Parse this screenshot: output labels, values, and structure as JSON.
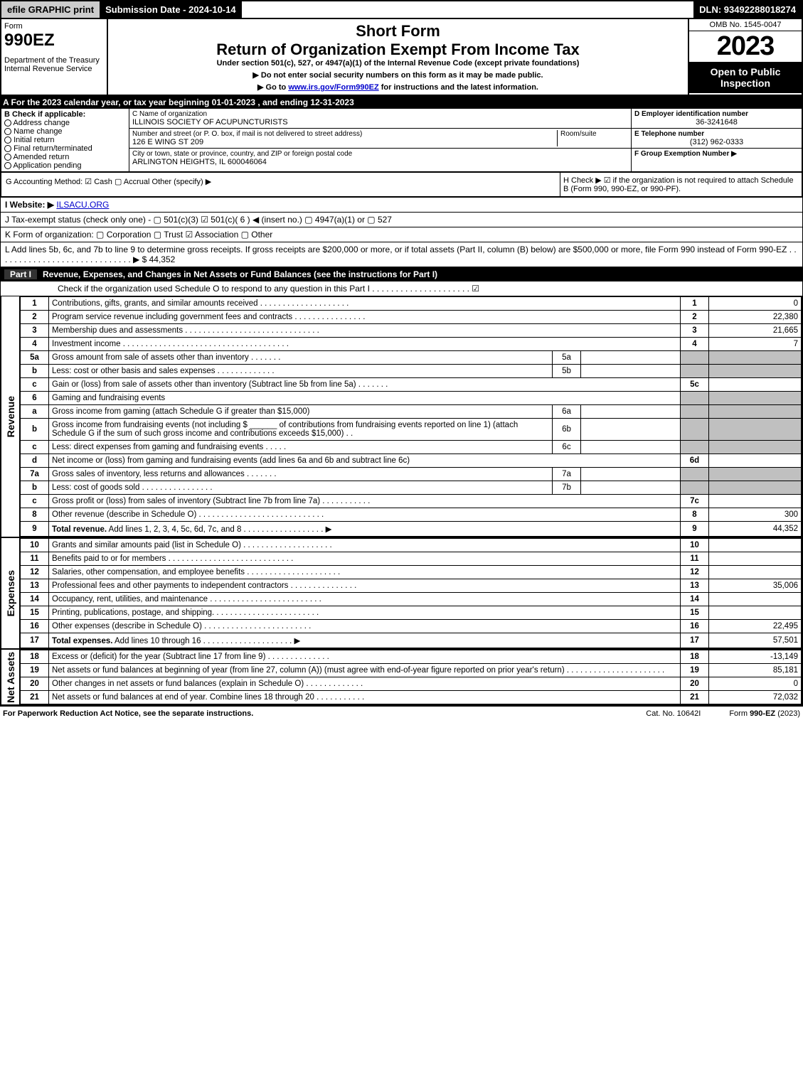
{
  "top": {
    "efile": "efile GRAPHIC print",
    "submission": "Submission Date - 2024-10-14",
    "dln": "DLN: 93492288018274"
  },
  "header": {
    "form": "Form",
    "formNo": "990EZ",
    "dept": "Department of the Treasury\nInternal Revenue Service",
    "shortForm": "Short Form",
    "title": "Return of Organization Exempt From Income Tax",
    "sub": "Under section 501(c), 527, or 4947(a)(1) of the Internal Revenue Code (except private foundations)",
    "instr1": "▶ Do not enter social security numbers on this form as it may be made public.",
    "instr2": "▶ Go to www.irs.gov/Form990EZ for instructions and the latest information.",
    "omb": "OMB No. 1545-0047",
    "year": "2023",
    "open": "Open to Public Inspection"
  },
  "A": "A  For the 2023 calendar year, or tax year beginning 01-01-2023 , and ending 12-31-2023",
  "B": {
    "label": "B  Check if applicable:",
    "opts": [
      "Address change",
      "Name change",
      "Initial return",
      "Final return/terminated",
      "Amended return",
      "Application pending"
    ]
  },
  "C": {
    "l1": "C Name of organization",
    "name": "ILLINOIS SOCIETY OF ACUPUNCTURISTS",
    "l2": "Number and street (or P. O. box, if mail is not delivered to street address)",
    "addr": "126 E WING ST 209",
    "room": "Room/suite",
    "l3": "City or town, state or province, country, and ZIP or foreign postal code",
    "city": "ARLINGTON HEIGHTS, IL  600046064"
  },
  "D": {
    "label": "D Employer identification number",
    "val": "36-3241648"
  },
  "E": {
    "label": "E Telephone number",
    "val": "(312) 962-0333"
  },
  "F": {
    "label": "F Group Exemption Number  ▶"
  },
  "G": "G Accounting Method:   ☑ Cash   ▢ Accrual   Other (specify) ▶",
  "H": "H  Check ▶ ☑ if the organization is not required to attach Schedule B (Form 990, 990-EZ, or 990-PF).",
  "I": {
    "label": "I Website: ▶",
    "val": "ILSACU.ORG"
  },
  "J": "J Tax-exempt status (check only one) -  ▢ 501(c)(3)  ☑ 501(c)( 6 ) ◀ (insert no.)  ▢ 4947(a)(1) or  ▢ 527",
  "K": "K Form of organization:   ▢ Corporation   ▢ Trust   ☑ Association   ▢ Other",
  "L": {
    "text": "L Add lines 5b, 6c, and 7b to line 9 to determine gross receipts. If gross receipts are $200,000 or more, or if total assets (Part II, column (B) below) are $500,000 or more, file Form 990 instead of Form 990-EZ  .  .  .  .  .  .  .  .  .  .  .  .  .  .  .  .  .  .  .  .  .  .  .  .  .  .  .  .  . ▶ $",
    "val": "44,352"
  },
  "part1": {
    "label": "Part I",
    "title": "Revenue, Expenses, and Changes in Net Assets or Fund Balances (see the instructions for Part I)",
    "sub": "Check if the organization used Schedule O to respond to any question in this Part I .  .  .  .  .  .  .  .  .  .  .  .  .  .  .  .  .  .  .  .  .  ☑"
  },
  "vlabels": {
    "rev": "Revenue",
    "exp": "Expenses",
    "net": "Net Assets"
  },
  "rows": [
    {
      "n": "1",
      "d": "Contributions, gifts, grants, and similar amounts received .  .  .  .  .  .  .  .  .  .  .  .  .  .  .  .  .  .  .  .",
      "r": "1",
      "v": "0"
    },
    {
      "n": "2",
      "d": "Program service revenue including government fees and contracts .  .  .  .  .  .  .  .  .  .  .  .  .  .  .  .",
      "r": "2",
      "v": "22,380"
    },
    {
      "n": "3",
      "d": "Membership dues and assessments .  .  .  .  .  .  .  .  .  .  .  .  .  .  .  .  .  .  .  .  .  .  .  .  .  .  .  .  .  .",
      "r": "3",
      "v": "21,665"
    },
    {
      "n": "4",
      "d": "Investment income .  .  .  .  .  .  .  .  .  .  .  .  .  .  .  .  .  .  .  .  .  .  .  .  .  .  .  .  .  .  .  .  .  .  .  .  .",
      "r": "4",
      "v": "7"
    },
    {
      "n": "5a",
      "d": "Gross amount from sale of assets other than inventory  .  .  .  .  .  .  .",
      "sub": "5a",
      "sv": "",
      "grey": true
    },
    {
      "n": "b",
      "d": "Less: cost or other basis and sales expenses  .  .  .  .  .  .  .  .  .  .  .  .  .",
      "sub": "5b",
      "sv": "",
      "grey": true
    },
    {
      "n": "c",
      "d": "Gain or (loss) from sale of assets other than inventory (Subtract line 5b from line 5a)  .  .  .  .  .  .  .  ",
      "r": "5c",
      "v": ""
    },
    {
      "n": "6",
      "d": "Gaming and fundraising events",
      "grey": true,
      "noval": true
    },
    {
      "n": "a",
      "d": "Gross income from gaming (attach Schedule G if greater than $15,000)",
      "sub": "6a",
      "sv": "",
      "grey": true
    },
    {
      "n": "b",
      "d": "Gross income from fundraising events (not including $ ______ of contributions from fundraising events reported on line 1) (attach Schedule G if the sum of such gross income and contributions exceeds $15,000)  .  .",
      "sub": "6b",
      "sv": "",
      "grey": true
    },
    {
      "n": "c",
      "d": "Less: direct expenses from gaming and fundraising events  .  .  .  .  .",
      "sub": "6c",
      "sv": "",
      "grey": true
    },
    {
      "n": "d",
      "d": "Net income or (loss) from gaming and fundraising events (add lines 6a and 6b and subtract line 6c)",
      "r": "6d",
      "v": ""
    },
    {
      "n": "7a",
      "d": "Gross sales of inventory, less returns and allowances  .  .  .  .  .  .  .",
      "sub": "7a",
      "sv": "",
      "grey": true
    },
    {
      "n": "b",
      "d": "Less: cost of goods sold       .  .  .  .  .  .  .  .  .  .  .  .  .  .  .  .",
      "sub": "7b",
      "sv": "",
      "grey": true
    },
    {
      "n": "c",
      "d": "Gross profit or (loss) from sales of inventory (Subtract line 7b from line 7a)  .  .  .  .  .  .  .  .  .  .  .",
      "r": "7c",
      "v": ""
    },
    {
      "n": "8",
      "d": "Other revenue (describe in Schedule O)  .  .  .  .  .  .  .  .  .  .  .  .  .  .  .  .  .  .  .  .  .  .  .  .  .  .  .  .",
      "r": "8",
      "v": "300"
    },
    {
      "n": "9",
      "d": "<b>Total revenue.</b> Add lines 1, 2, 3, 4, 5c, 6d, 7c, and 8  .  .  .  .  .  .  .  .  .  .  .  .  .  .  .  .  .  .   ▶",
      "r": "9",
      "v": "44,352"
    }
  ],
  "exp": [
    {
      "n": "10",
      "d": "Grants and similar amounts paid (list in Schedule O)  .  .  .  .  .  .  .  .  .  .  .  .  .  .  .  .  .  .  .  .",
      "r": "10",
      "v": ""
    },
    {
      "n": "11",
      "d": "Benefits paid to or for members    .  .  .  .  .  .  .  .  .  .  .  .  .  .  .  .  .  .  .  .  .  .  .  .  .  .  .  .",
      "r": "11",
      "v": ""
    },
    {
      "n": "12",
      "d": "Salaries, other compensation, and employee benefits .  .  .  .  .  .  .  .  .  .  .  .  .  .  .  .  .  .  .  .  .",
      "r": "12",
      "v": ""
    },
    {
      "n": "13",
      "d": "Professional fees and other payments to independent contractors .  .  .  .  .  .  .  .  .  .  .  .  .  .  .",
      "r": "13",
      "v": "35,006"
    },
    {
      "n": "14",
      "d": "Occupancy, rent, utilities, and maintenance .  .  .  .  .  .  .  .  .  .  .  .  .  .  .  .  .  .  .  .  .  .  .  .  .",
      "r": "14",
      "v": ""
    },
    {
      "n": "15",
      "d": "Printing, publications, postage, and shipping.  .  .  .  .  .  .  .  .  .  .  .  .  .  .  .  .  .  .  .  .  .  .  .",
      "r": "15",
      "v": ""
    },
    {
      "n": "16",
      "d": "Other expenses (describe in Schedule O)   .  .  .  .  .  .  .  .  .  .  .  .  .  .  .  .  .  .  .  .  .  .  .  .",
      "r": "16",
      "v": "22,495"
    },
    {
      "n": "17",
      "d": "<b>Total expenses.</b> Add lines 10 through 16   .  .  .  .  .  .  .  .  .  .  .  .  .  .  .  .  .  .  .  .  ▶",
      "r": "17",
      "v": "57,501"
    }
  ],
  "net": [
    {
      "n": "18",
      "d": "Excess or (deficit) for the year (Subtract line 17 from line 9)     .  .  .  .  .  .  .  .  .  .  .  .  .  .",
      "r": "18",
      "v": "-13,149"
    },
    {
      "n": "19",
      "d": "Net assets or fund balances at beginning of year (from line 27, column (A)) (must agree with end-of-year figure reported on prior year's return) .  .  .  .  .  .  .  .  .  .  .  .  .  .  .  .  .  .  .  .  .  .",
      "r": "19",
      "v": "85,181"
    },
    {
      "n": "20",
      "d": "Other changes in net assets or fund balances (explain in Schedule O) .  .  .  .  .  .  .  .  .  .  .  .  .",
      "r": "20",
      "v": "0"
    },
    {
      "n": "21",
      "d": "Net assets or fund balances at end of year. Combine lines 18 through 20 .  .  .  .  .  .  .  .  .  .  .",
      "r": "21",
      "v": "72,032"
    }
  ],
  "footer": {
    "l": "For Paperwork Reduction Act Notice, see the separate instructions.",
    "m": "Cat. No. 10642I",
    "r": "Form 990-EZ (2023)"
  }
}
